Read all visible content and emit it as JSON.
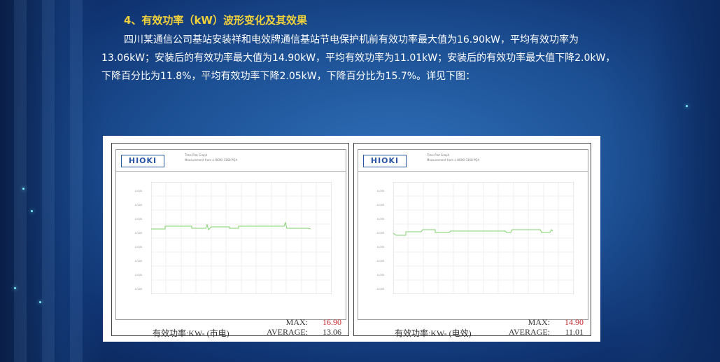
{
  "heading": "4、有效功率（kW）波形变化及其效果",
  "paragraph": "四川某通信公司基站安装祥和电效牌通信基站节电保护机前有效功率最大值为16.90kW，平均有效功率为13.06kW；安装后的有效功率最大值为14.90kW，平均有效功率为11.01kW；安装后的有效功率最大值下降2.0kW，下降百分比为11.8%，平均有效功率下降2.05kW，下降百分比为15.7%。详见下图：",
  "figure": {
    "panels": [
      {
        "logo": "HIOKI",
        "header_title": "Time Plot Graph",
        "header_sub": "Measurement from a HIOKI 3168 PQA",
        "caption": "有效功率:KW- (市电)",
        "max_label": "MAX:",
        "max_value": "16.90",
        "avg_label": "AVERAGE:",
        "avg_value": "13.06"
      },
      {
        "logo": "HIOKI",
        "header_title": "Time Plot Graph",
        "header_sub": "Measurement from a HIOKI 3168 PQA",
        "caption": "有效功率:KW- (电效)",
        "max_label": "MAX:",
        "max_value": "14.90",
        "avg_label": "AVERAGE:",
        "avg_value": "11.01"
      }
    ]
  },
  "colors": {
    "heading": "#f4d23a",
    "text": "#ffffff",
    "max_value": "#c0262d",
    "trace": "#7fd26b",
    "logo": "#2a56a8"
  }
}
